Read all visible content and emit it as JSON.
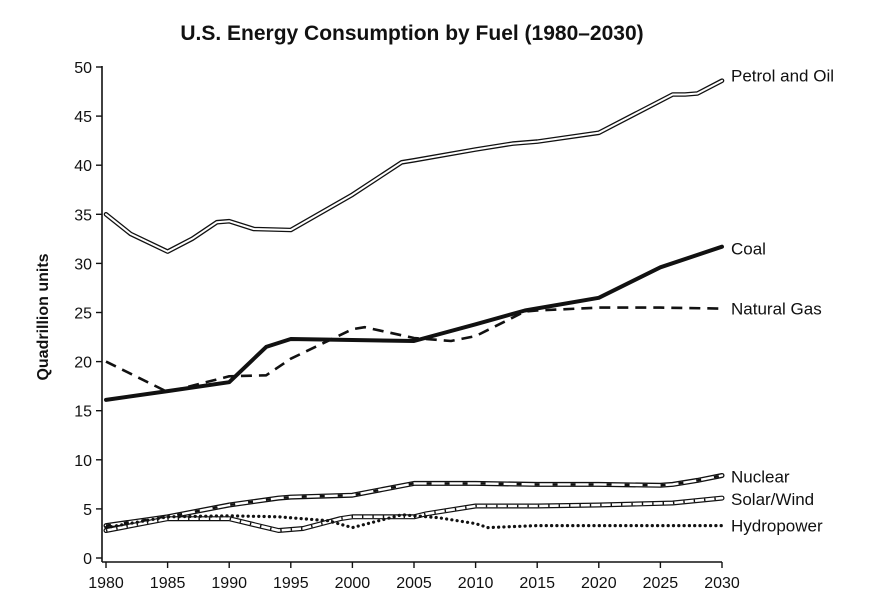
{
  "chart_data": {
    "type": "line",
    "title": "U.S. Energy Consumption by Fuel (1980–2030)",
    "xlabel": "",
    "ylabel": "Quadrillion units",
    "xlim": [
      1980,
      2030
    ],
    "ylim": [
      0,
      50
    ],
    "x_ticks": [
      1980,
      1985,
      1990,
      1995,
      2000,
      2005,
      2010,
      2015,
      2020,
      2025,
      2030
    ],
    "y_ticks": [
      0,
      5,
      10,
      15,
      20,
      25,
      30,
      35,
      40,
      45,
      50
    ],
    "grid": false,
    "legend": "direct labels at right end of each line",
    "series": [
      {
        "name": "Petrol and Oil",
        "style": "double",
        "x": [
          1980,
          1982,
          1985,
          1987,
          1989,
          1990,
          1992,
          1995,
          2000,
          2004,
          2005,
          2010,
          2013,
          2015,
          2020,
          2026,
          2027,
          2028,
          2030
        ],
        "values": [
          35,
          33,
          31.2,
          32.5,
          34.2,
          34.3,
          33.5,
          33.4,
          37,
          40.3,
          40.5,
          41.6,
          42.2,
          42.4,
          43.3,
          47.2,
          47.2,
          47.3,
          48.6
        ]
      },
      {
        "name": "Coal",
        "style": "solid-thick",
        "x": [
          1980,
          1985,
          1990,
          1993,
          1995,
          2000,
          2005,
          2010,
          2014,
          2020,
          2025,
          2030
        ],
        "values": [
          16.1,
          17,
          17.9,
          21.5,
          22.3,
          22.2,
          22.1,
          23.8,
          25.2,
          26.5,
          29.6,
          31.7
        ]
      },
      {
        "name": "Natural Gas",
        "style": "dashed",
        "x": [
          1980,
          1985,
          1990,
          1993,
          1995,
          2000,
          2001,
          2005,
          2008,
          2010,
          2014,
          2015,
          2020,
          2025,
          2030
        ],
        "values": [
          20,
          16.9,
          18.5,
          18.6,
          20.3,
          23.3,
          23.5,
          22.4,
          22.1,
          22.6,
          25.1,
          25.2,
          25.5,
          25.5,
          25.4
        ]
      },
      {
        "name": "Nuclear",
        "style": "double-dark-dashes",
        "x": [
          1980,
          1985,
          1990,
          1994,
          1995,
          2000,
          2005,
          2006,
          2010,
          2015,
          2020,
          2025,
          2026,
          2028,
          2030
        ],
        "values": [
          3.3,
          4.2,
          5.4,
          6.1,
          6.2,
          6.4,
          7.6,
          7.6,
          7.6,
          7.5,
          7.5,
          7.4,
          7.5,
          7.9,
          8.4
        ]
      },
      {
        "name": "Solar/Wind",
        "style": "double-hatched",
        "x": [
          1980,
          1985,
          1990,
          1994,
          1996,
          1999,
          2000,
          2005,
          2006,
          2010,
          2015,
          2020,
          2026,
          2030
        ],
        "values": [
          2.8,
          4.0,
          4.0,
          2.8,
          3.0,
          4.0,
          4.2,
          4.2,
          4.5,
          5.3,
          5.3,
          5.4,
          5.6,
          6.1
        ]
      },
      {
        "name": "Hydropower",
        "style": "dotted",
        "x": [
          1980,
          1985,
          1990,
          1994,
          1998,
          2000,
          2004,
          2007,
          2010,
          2011,
          2015,
          2020,
          2025,
          2030
        ],
        "values": [
          3.1,
          4.2,
          4.3,
          4.2,
          3.8,
          3.1,
          4.4,
          4.1,
          3.5,
          3.1,
          3.3,
          3.3,
          3.3,
          3.3
        ]
      }
    ]
  }
}
